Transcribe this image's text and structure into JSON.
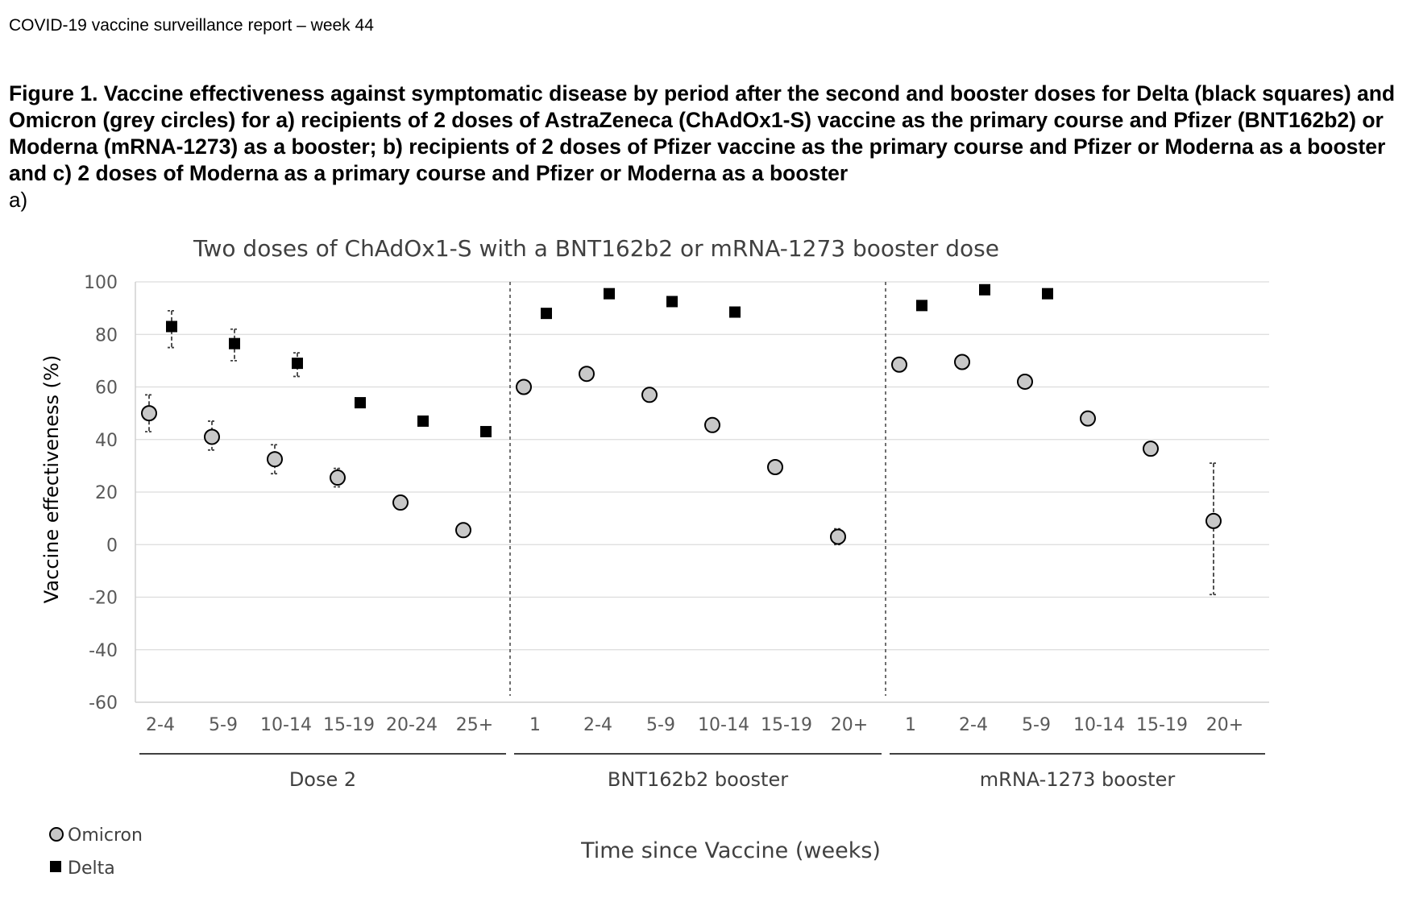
{
  "header": {
    "report_title": "COVID-19 vaccine surveillance report – week 44",
    "figure_caption": "Figure 1. Vaccine effectiveness against symptomatic disease by period after the second and booster doses for Delta (black squares) and Omicron (grey circles) for a) recipients of 2 doses of AstraZeneca (ChAdOx1-S) vaccine as the primary course and Pfizer (BNT162b2) or Moderna (mRNA-1273) as a booster; b) recipients of 2 doses of Pfizer vaccine as the primary course and Pfizer or Moderna as a booster and c) 2 doses of Moderna as a primary course and Pfizer or Moderna as a booster",
    "panel_label": "a)"
  },
  "chart_data": {
    "type": "scatter",
    "title": "Two doses of ChAdOx1-S with a BNT162b2 or mRNA-1273 booster dose",
    "ylabel": "Vaccine effectiveness (%)",
    "xlabel": "Time since Vaccine (weeks)",
    "ylim": [
      -60,
      100
    ],
    "yticks": [
      100,
      80,
      60,
      40,
      20,
      0,
      -20,
      -40,
      -60
    ],
    "grid": true,
    "legend_position": "bottom-left",
    "groups": [
      {
        "name": "Dose 2",
        "categories": [
          "2-4",
          "5-9",
          "10-14",
          "15-19",
          "20-24",
          "25+"
        ],
        "omicron": [
          {
            "value": 50,
            "low": 43,
            "high": 57
          },
          {
            "value": 41,
            "low": 36,
            "high": 47
          },
          {
            "value": 32.5,
            "low": 27,
            "high": 38
          },
          {
            "value": 25.5,
            "low": 22,
            "high": 29
          },
          {
            "value": 16,
            "low": null,
            "high": null
          },
          {
            "value": 5.5,
            "low": null,
            "high": null
          }
        ],
        "delta": [
          {
            "value": 83,
            "low": 75,
            "high": 89
          },
          {
            "value": 76.5,
            "low": 70,
            "high": 82
          },
          {
            "value": 69,
            "low": 64,
            "high": 73
          },
          {
            "value": 54,
            "low": null,
            "high": null
          },
          {
            "value": 47,
            "low": null,
            "high": null
          },
          {
            "value": 43,
            "low": null,
            "high": null
          }
        ]
      },
      {
        "name": "BNT162b2 booster",
        "categories": [
          "1",
          "2-4",
          "5-9",
          "10-14",
          "15-19",
          "20+"
        ],
        "omicron": [
          {
            "value": 60,
            "low": null,
            "high": null
          },
          {
            "value": 65,
            "low": null,
            "high": null
          },
          {
            "value": 57,
            "low": null,
            "high": null
          },
          {
            "value": 45.5,
            "low": null,
            "high": null
          },
          {
            "value": 29.5,
            "low": null,
            "high": null
          },
          {
            "value": 3,
            "low": 0,
            "high": 6
          }
        ],
        "delta": [
          {
            "value": 88,
            "low": null,
            "high": null
          },
          {
            "value": 95.5,
            "low": null,
            "high": null
          },
          {
            "value": 92.5,
            "low": null,
            "high": null
          },
          {
            "value": 88.5,
            "low": null,
            "high": null
          },
          {
            "value": null,
            "low": null,
            "high": null
          },
          {
            "value": null,
            "low": null,
            "high": null
          }
        ]
      },
      {
        "name": "mRNA-1273 booster",
        "categories": [
          "1",
          "2-4",
          "5-9",
          "10-14",
          "15-19",
          "20+"
        ],
        "omicron": [
          {
            "value": 68.5,
            "low": null,
            "high": null
          },
          {
            "value": 69.5,
            "low": null,
            "high": null
          },
          {
            "value": 62,
            "low": null,
            "high": null
          },
          {
            "value": 48,
            "low": null,
            "high": null
          },
          {
            "value": 36.5,
            "low": null,
            "high": null
          },
          {
            "value": 9,
            "low": -19,
            "high": 31
          }
        ],
        "delta": [
          {
            "value": 91,
            "low": null,
            "high": null
          },
          {
            "value": 97,
            "low": null,
            "high": null
          },
          {
            "value": 95.5,
            "low": null,
            "high": null
          },
          {
            "value": null,
            "low": null,
            "high": null
          },
          {
            "value": null,
            "low": null,
            "high": null
          },
          {
            "value": null,
            "low": null,
            "high": null
          }
        ]
      }
    ],
    "legend": [
      {
        "name": "Omicron",
        "marker": "circle",
        "color": "#c8c8c8"
      },
      {
        "name": "Delta",
        "marker": "square",
        "color": "#000000"
      }
    ]
  }
}
